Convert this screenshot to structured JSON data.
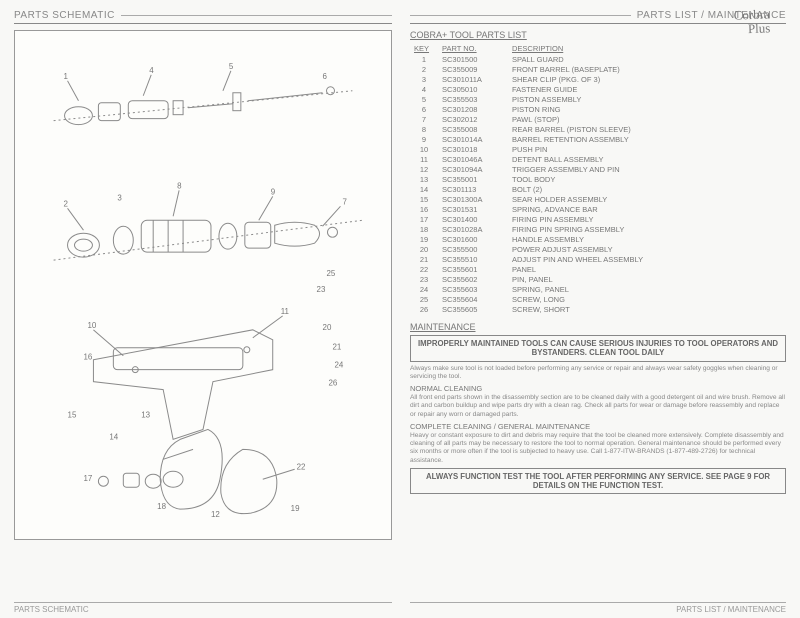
{
  "handwritten": {
    "line1": "Corbra",
    "line2": "Plus"
  },
  "left": {
    "title": "PARTS SCHEMATIC",
    "footer": "PARTS SCHEMATIC",
    "callouts": [
      "1",
      "2",
      "3",
      "4",
      "5",
      "6",
      "7",
      "8",
      "9",
      "10",
      "11",
      "12",
      "13",
      "14",
      "15",
      "16",
      "17",
      "18",
      "19",
      "20",
      "21",
      "22",
      "23",
      "24",
      "25",
      "26"
    ]
  },
  "right": {
    "title": "PARTS LIST / MAINTENANCE",
    "footer": "PARTS LIST / MAINTENANCE",
    "list_heading": "COBRA+ TOOL PARTS LIST",
    "columns": {
      "key": "KEY",
      "part": "PART NO.",
      "desc": "DESCRIPTION"
    },
    "rows": [
      {
        "k": "1",
        "p": "SC301500",
        "d": "SPALL GUARD"
      },
      {
        "k": "2",
        "p": "SC355009",
        "d": "FRONT BARREL (BASEPLATE)"
      },
      {
        "k": "3",
        "p": "SC301011A",
        "d": "SHEAR CLIP (PKG. OF 3)"
      },
      {
        "k": "4",
        "p": "SC305010",
        "d": "FASTENER GUIDE"
      },
      {
        "k": "5",
        "p": "SC355503",
        "d": "PISTON ASSEMBLY"
      },
      {
        "k": "6",
        "p": "SC301208",
        "d": "PISTON RING"
      },
      {
        "k": "7",
        "p": "SC302012",
        "d": "PAWL (STOP)"
      },
      {
        "k": "8",
        "p": "SC355008",
        "d": "REAR BARREL (PISTON SLEEVE)"
      },
      {
        "k": "9",
        "p": "SC301014A",
        "d": "BARREL RETENTION ASSEMBLY"
      },
      {
        "k": "10",
        "p": "SC301018",
        "d": "PUSH PIN"
      },
      {
        "k": "11",
        "p": "SC301046A",
        "d": "DETENT BALL ASSEMBLY"
      },
      {
        "k": "12",
        "p": "SC301094A",
        "d": "TRIGGER ASSEMBLY AND PIN"
      },
      {
        "k": "13",
        "p": "SC355001",
        "d": "TOOL BODY"
      },
      {
        "k": "14",
        "p": "SC301113",
        "d": "BOLT (2)"
      },
      {
        "k": "15",
        "p": "SC301300A",
        "d": "SEAR HOLDER ASSEMBLY"
      },
      {
        "k": "16",
        "p": "SC301531",
        "d": "SPRING, ADVANCE BAR"
      },
      {
        "k": "17",
        "p": "SC301400",
        "d": "FIRING PIN ASSEMBLY"
      },
      {
        "k": "18",
        "p": "SC301028A",
        "d": "FIRING PIN SPRING ASSEMBLY"
      },
      {
        "k": "19",
        "p": "SC301600",
        "d": "HANDLE ASSEMBLY"
      },
      {
        "k": "20",
        "p": "SC355500",
        "d": "POWER ADJUST ASSEMBLY"
      },
      {
        "k": "21",
        "p": "SC355510",
        "d": "ADJUST PIN AND WHEEL ASSEMBLY"
      },
      {
        "k": "22",
        "p": "SC355601",
        "d": "PANEL"
      },
      {
        "k": "23",
        "p": "SC355602",
        "d": "PIN, PANEL"
      },
      {
        "k": "24",
        "p": "SC355603",
        "d": "SPRING, PANEL"
      },
      {
        "k": "25",
        "p": "SC355604",
        "d": "SCREW, LONG"
      },
      {
        "k": "26",
        "p": "SC355605",
        "d": "SCREW, SHORT"
      }
    ],
    "maint_heading": "MAINTENANCE",
    "warn1": "IMPROPERLY MAINTAINED TOOLS CAN CAUSE SERIOUS INJURIES TO TOOL OPERATORS AND BYSTANDERS. CLEAN TOOL DAILY",
    "body1": "Always make sure tool is not loaded before performing any service or repair and always wear safety goggles when cleaning or servicing the tool.",
    "sub1": "NORMAL CLEANING",
    "body2": "All front end parts shown in the disassembly section are to be cleaned daily with a good detergent oil and wire brush. Remove all dirt and carbon buildup and wipe parts dry with a clean rag. Check all parts for wear or damage before reassembly and replace or repair any worn or damaged parts.",
    "sub2": "COMPLETE CLEANING / GENERAL MAINTENANCE",
    "body3": "Heavy or constant exposure to dirt and debris may require that the tool be cleaned more extensively. Complete disassembly and cleaning of all parts may be necessary to restore the tool to normal operation. General maintenance should be performed every six months or more often if the tool is subjected to heavy use. Call 1-877-ITW-BRANDS (1-877-489-2726) for technical assistance.",
    "warn2": "ALWAYS FUNCTION TEST THE TOOL AFTER PERFORMING ANY SERVICE. SEE PAGE 9 FOR DETAILS ON THE FUNCTION TEST."
  },
  "svg": {
    "stroke": "#8a8a8a",
    "fill": "none",
    "text_color": "#777",
    "font_size": 8
  }
}
